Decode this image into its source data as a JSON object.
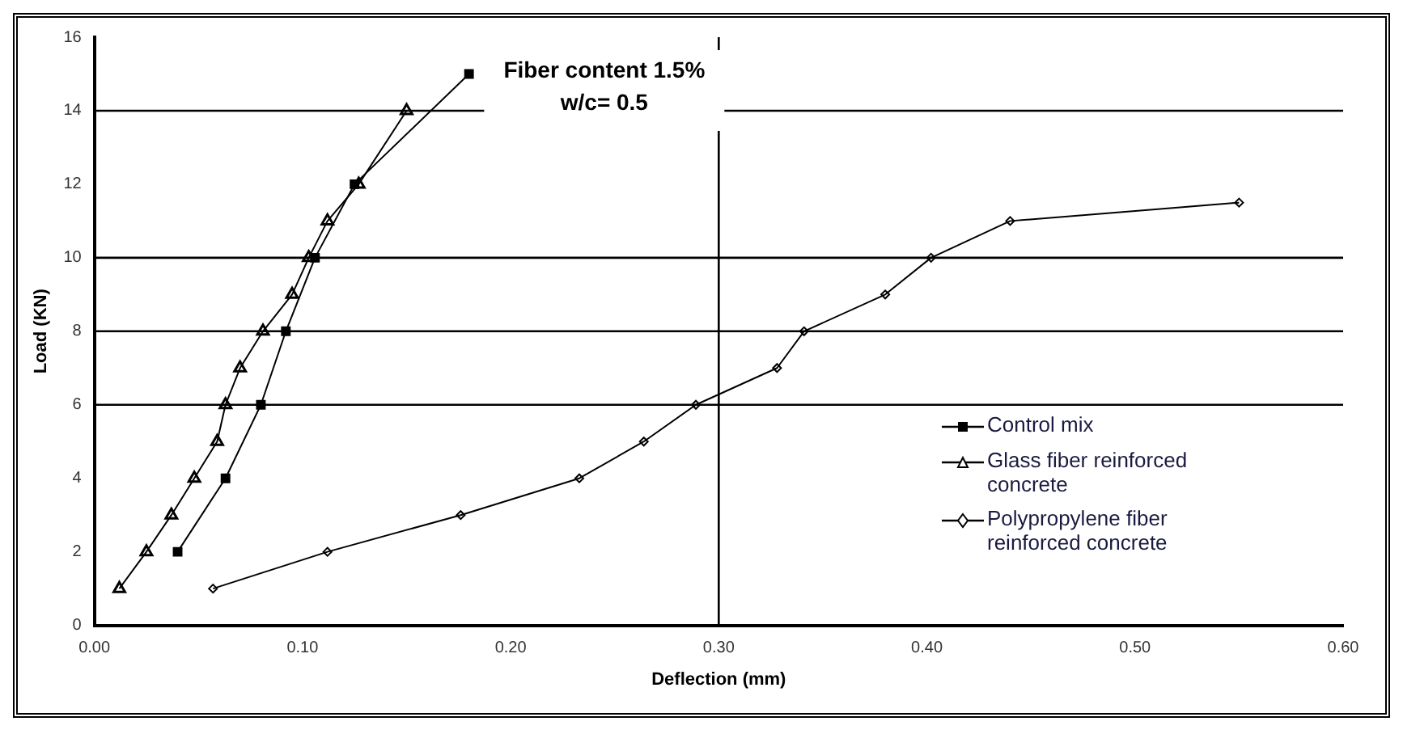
{
  "chart_data": {
    "type": "line",
    "xlabel": "Deflection (mm)",
    "ylabel": "Load (KN)",
    "annotations": [
      "Fiber content 1.5%",
      "w/c= 0.5"
    ],
    "xlim": [
      0,
      0.6
    ],
    "ylim": [
      0,
      16
    ],
    "xticks": [
      {
        "value": 0,
        "label": "0.00"
      },
      {
        "value": 0.1,
        "label": "0.10"
      },
      {
        "value": 0.2,
        "label": "0.20"
      },
      {
        "value": 0.3,
        "label": "0.30"
      },
      {
        "value": 0.4,
        "label": "0.40"
      },
      {
        "value": 0.5,
        "label": "0.50"
      },
      {
        "value": 0.6,
        "label": "0.60"
      }
    ],
    "yticks": [
      0,
      2,
      4,
      6,
      8,
      10,
      12,
      14,
      16
    ],
    "ref_lines": [
      {
        "axis": "y",
        "value": 6,
        "color": "#000000"
      },
      {
        "axis": "y",
        "value": 8,
        "color": "#000000"
      },
      {
        "axis": "y",
        "value": 10,
        "color": "#000000"
      },
      {
        "axis": "y",
        "value": 14,
        "color": "#000000"
      },
      {
        "axis": "x",
        "value": 0.3,
        "color": "#000000"
      }
    ],
    "legend": "right",
    "series": [
      {
        "name": "Control mix",
        "color": "#000000",
        "marker": "square",
        "x": [
          0.04,
          0.063,
          0.08,
          0.092,
          0.106,
          0.125,
          0.18
        ],
        "values": [
          2,
          4,
          6,
          8,
          10,
          12,
          15
        ]
      },
      {
        "name": "Glass fiber reinforced concrete",
        "color": "#000000",
        "marker": "triangle",
        "x": [
          0.012,
          0.025,
          0.037,
          0.048,
          0.059,
          0.063,
          0.07,
          0.081,
          0.095,
          0.103,
          0.112,
          0.127,
          0.15
        ],
        "values": [
          1,
          2,
          3,
          4,
          5,
          6,
          7,
          8,
          9,
          10,
          11,
          12,
          14
        ]
      },
      {
        "name": "Polypropylene fiber reinforced concrete",
        "color": "#000000",
        "marker": "diamond",
        "x": [
          0.057,
          0.112,
          0.176,
          0.233,
          0.264,
          0.289,
          0.328,
          0.341,
          0.38,
          0.402,
          0.44,
          0.55
        ],
        "values": [
          1,
          2,
          3,
          4,
          5,
          6,
          7,
          8,
          9,
          10,
          11,
          11.5
        ]
      }
    ]
  }
}
